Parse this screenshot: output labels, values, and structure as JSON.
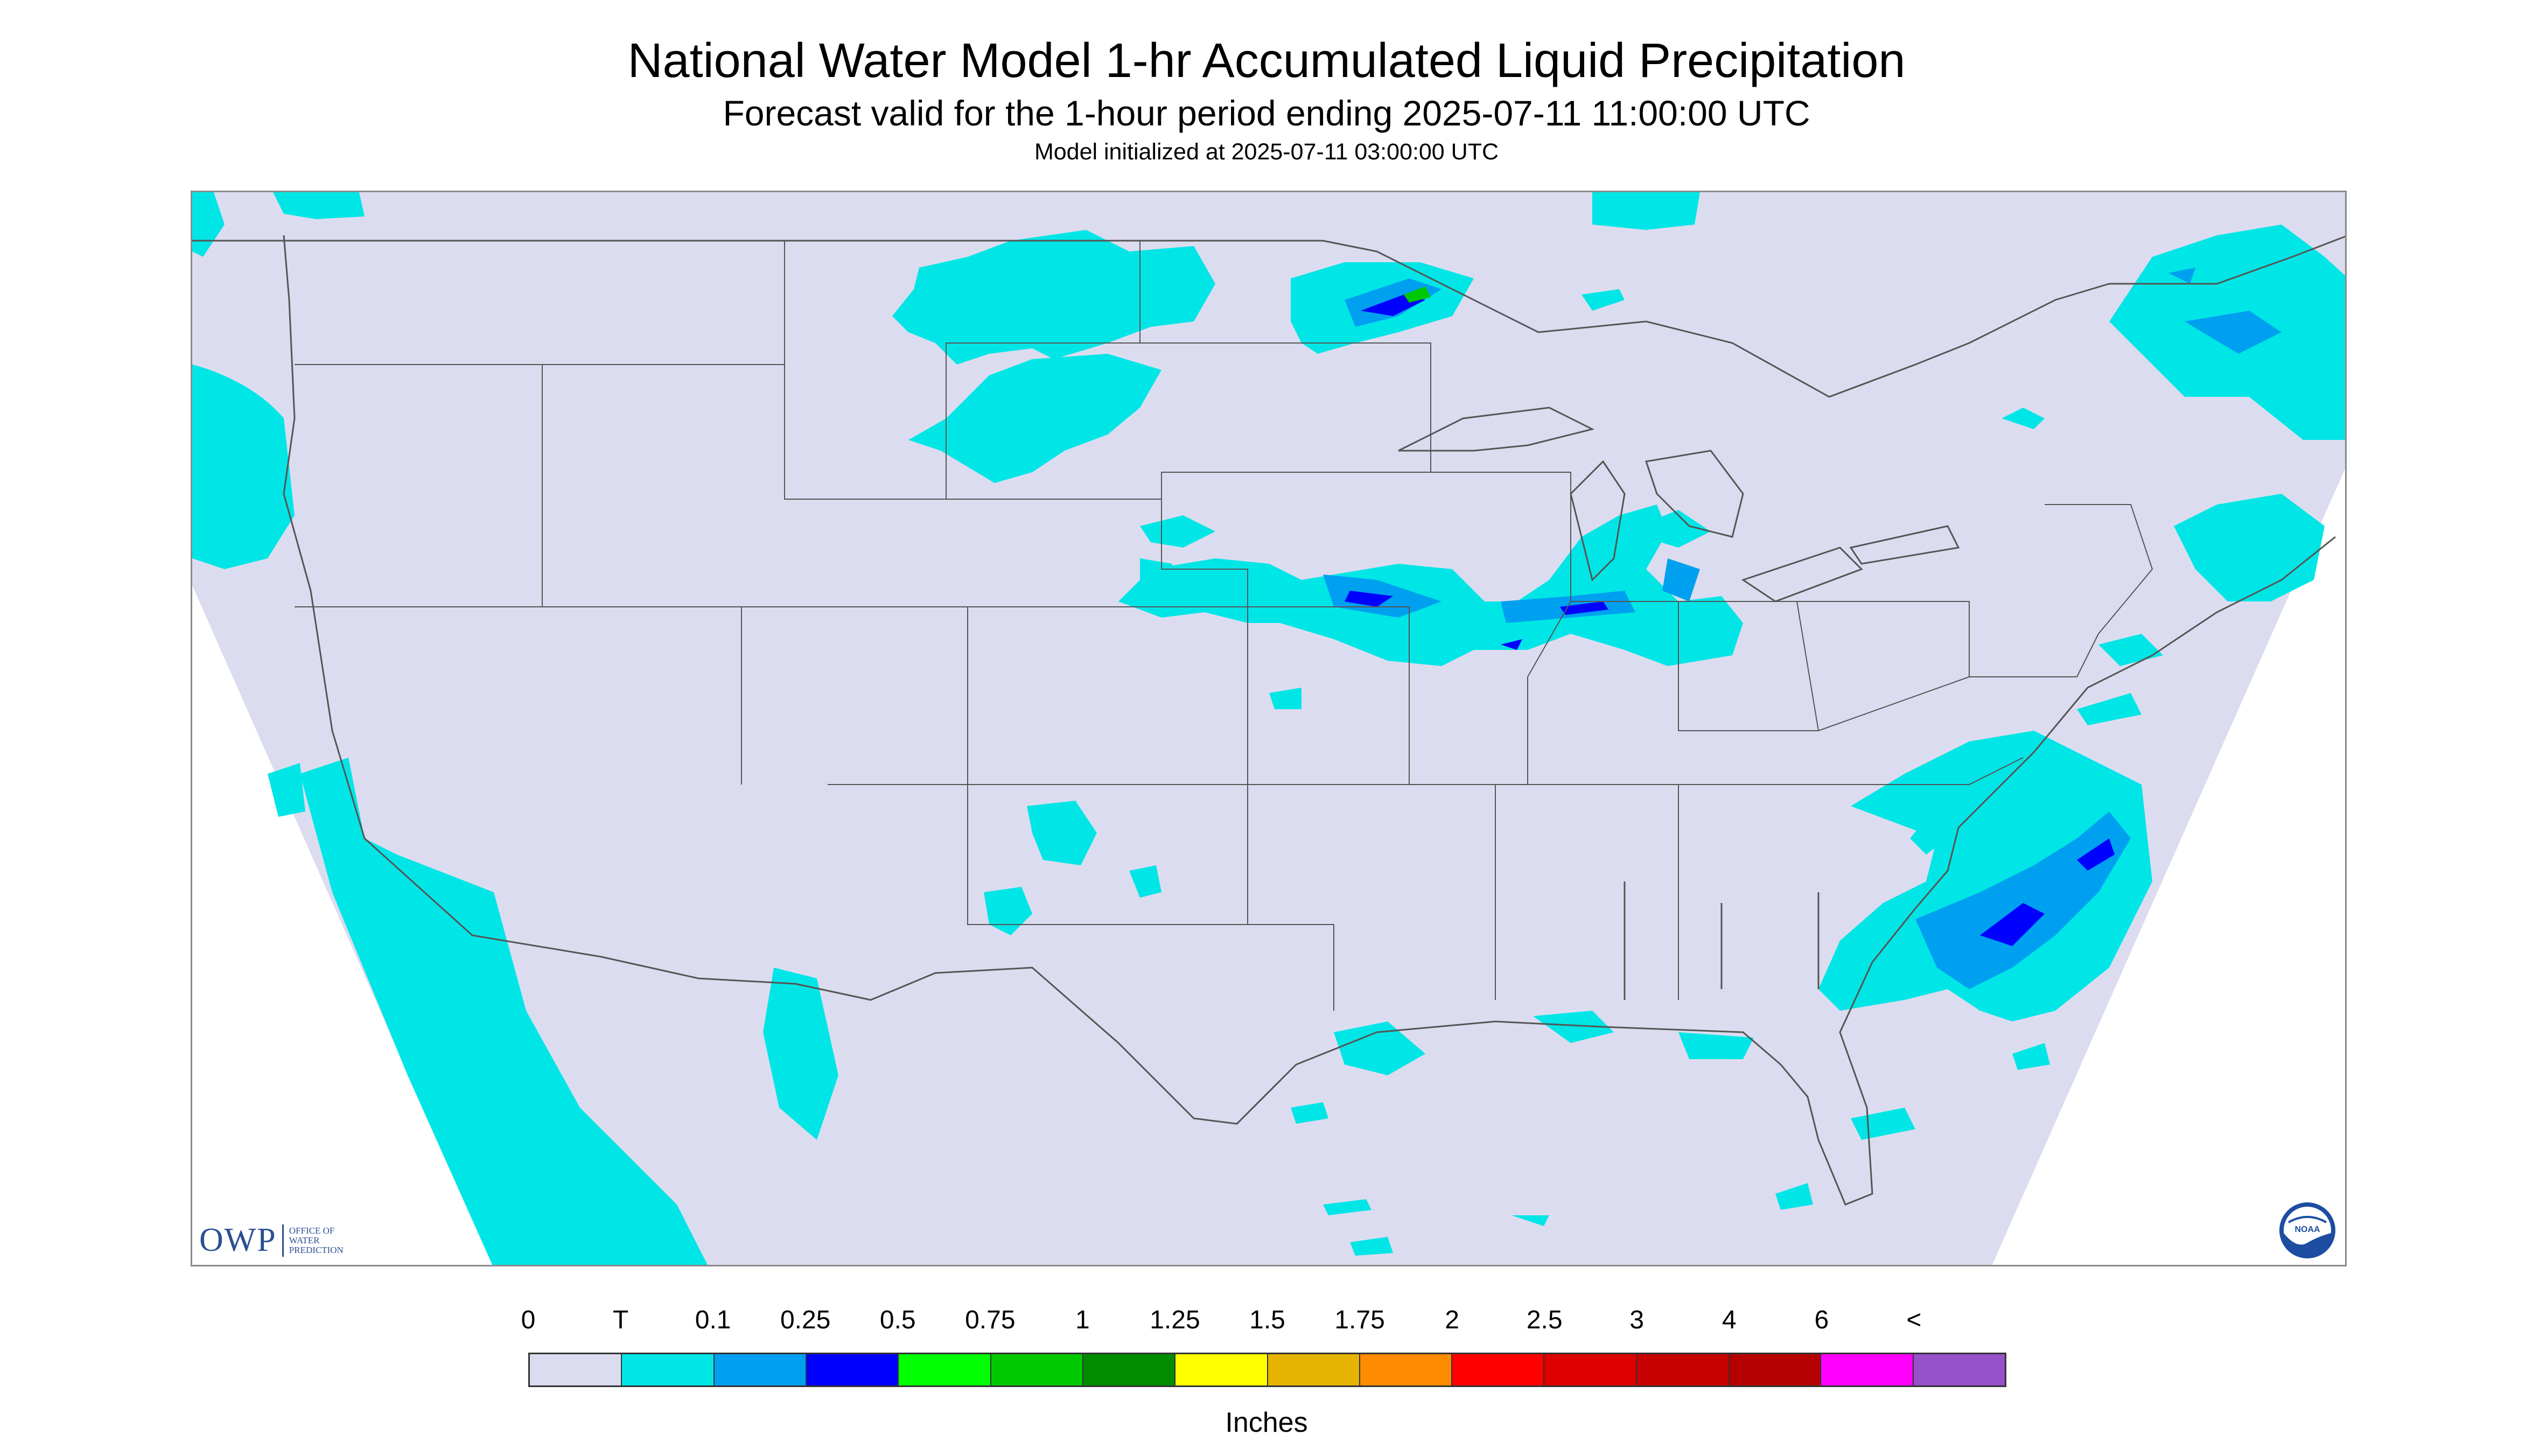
{
  "title": "National Water Model 1-hr Accumulated Liquid Precipitation",
  "subtitle": "Forecast valid for the 1-hour period ending 2025-07-11 11:00:00 UTC",
  "initialized": "Model initialized at 2025-07-11 03:00:00 UTC",
  "logos": {
    "owp_big": "OWP",
    "owp_small_1": "OFFICE OF",
    "owp_small_2": "WATER",
    "owp_small_3": "PREDICTION",
    "noaa": "NOAA"
  },
  "colors": {
    "background_fill": "#dcdcf0",
    "trace": "#00e6e6",
    "light": "#00a0f0",
    "moderate": "#0000ff",
    "green": "#00ff00",
    "outside_domain": "#ffffff",
    "boundary_line": "#555555"
  },
  "legend": {
    "units": "Inches",
    "labels": [
      "0",
      "T",
      "0.1",
      "0.25",
      "0.5",
      "0.75",
      "1",
      "1.25",
      "1.5",
      "1.75",
      "2",
      "2.5",
      "3",
      "4",
      "6",
      "<"
    ],
    "colors": [
      "#dcdcf0",
      "#00e6e6",
      "#00a0f0",
      "#0000ff",
      "#00ff00",
      "#00c800",
      "#008c00",
      "#ffff00",
      "#e6b400",
      "#ff8c00",
      "#ff0000",
      "#dc0000",
      "#c80000",
      "#b40000",
      "#ff00ff",
      "#9650c8"
    ]
  }
}
